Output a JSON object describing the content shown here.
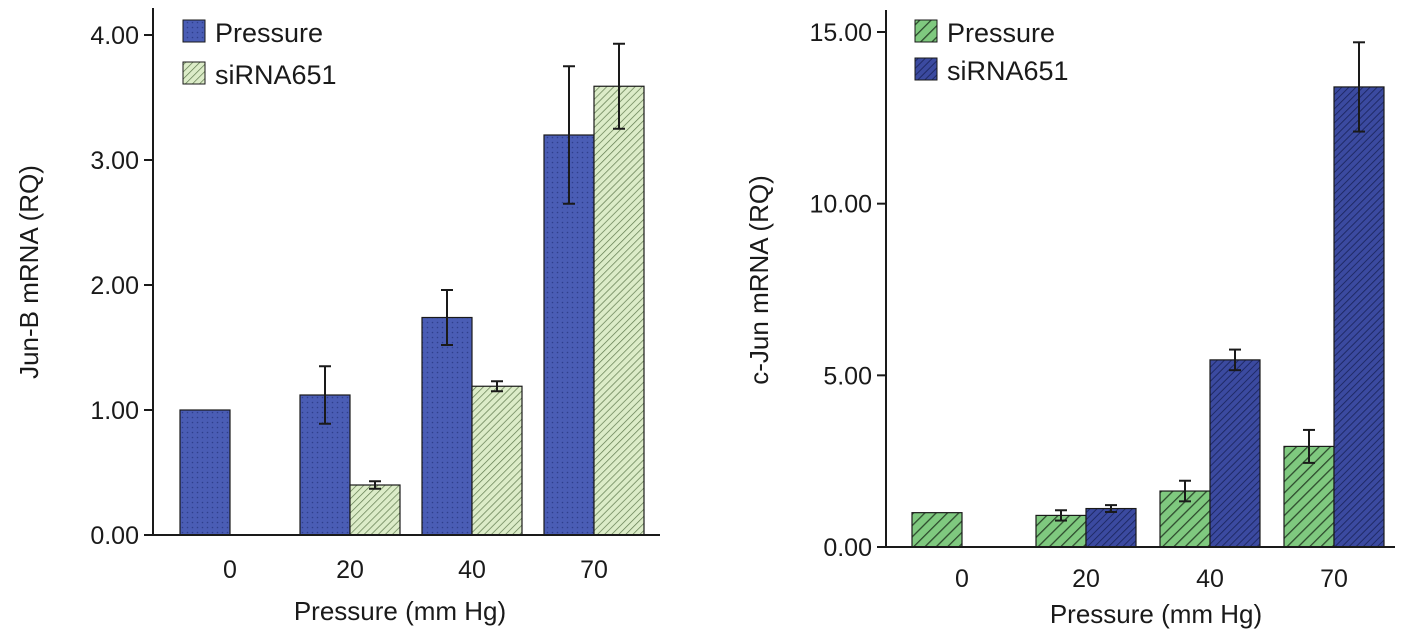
{
  "colors": {
    "blue_fill": "#4a5db5",
    "blue_dots": "#2f3f8c",
    "light_green_fill": "#dcecc8",
    "light_green_stripe": "#5f7a4e",
    "green_fill": "#7fc97f",
    "green_stripe": "#2d4a2d",
    "navy_fill": "#3b4aa0",
    "navy_stripe": "#1c2660",
    "axis": "#1a1a1a"
  },
  "chart_data": [
    {
      "type": "bar",
      "categories": [
        "0",
        "20",
        "40",
        "70"
      ],
      "xlabel": "Pressure (mm Hg)",
      "ylabel": "Jun-B mRNA (RQ)",
      "ylim": [
        0,
        4.2
      ],
      "yticks": [
        "0.00",
        "1.00",
        "2.00",
        "3.00",
        "4.00"
      ],
      "ytick_values": [
        0,
        1,
        2,
        3,
        4
      ],
      "legend_position": "top-left",
      "series": [
        {
          "name": "Pressure",
          "pattern": "blue-dots",
          "values": [
            1.0,
            1.12,
            1.74,
            3.2
          ],
          "errors": [
            0.0,
            0.23,
            0.22,
            0.55
          ]
        },
        {
          "name": "siRNA651",
          "pattern": "light-green-stripes",
          "values": [
            null,
            0.4,
            1.19,
            3.59
          ],
          "errors": [
            null,
            0.03,
            0.04,
            0.34
          ]
        }
      ]
    },
    {
      "type": "bar",
      "categories": [
        "0",
        "20",
        "40",
        "70"
      ],
      "xlabel": "Pressure (mm Hg)",
      "ylabel": "c-Jun mRNA (RQ)",
      "ylim": [
        0,
        15.5
      ],
      "yticks": [
        "0.00",
        "5.00",
        "10.00",
        "15.00"
      ],
      "ytick_values": [
        0,
        5,
        10,
        15
      ],
      "legend_position": "top-left",
      "series": [
        {
          "name": "Pressure",
          "pattern": "green-stripes",
          "values": [
            1.0,
            0.92,
            1.63,
            2.93
          ],
          "errors": [
            0.0,
            0.15,
            0.3,
            0.48
          ]
        },
        {
          "name": "siRNA651",
          "pattern": "navy-stripes",
          "values": [
            null,
            1.12,
            5.45,
            13.4
          ],
          "errors": [
            null,
            0.1,
            0.3,
            1.3
          ]
        }
      ]
    }
  ]
}
